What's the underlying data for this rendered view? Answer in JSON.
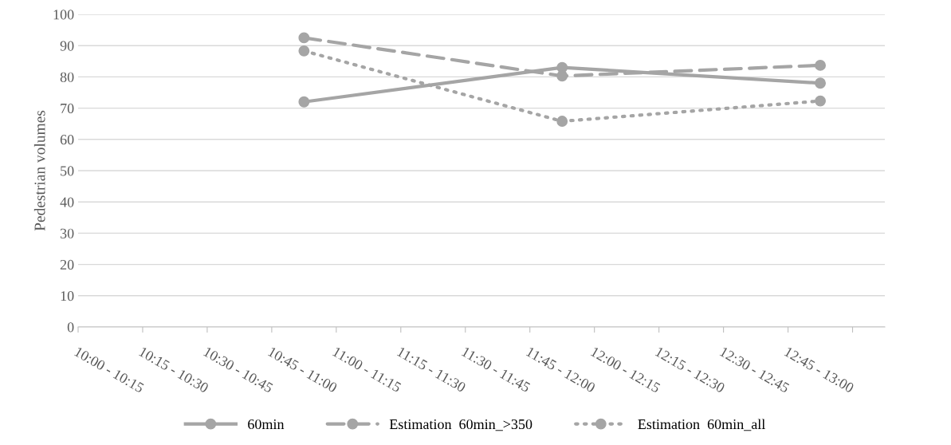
{
  "chart_data": {
    "type": "line",
    "ylabel": "Pedestrian volumes",
    "categories": [
      "10:00 - 10:15",
      "10:15 - 10:30",
      "10:30 - 10:45",
      "10:45 - 11:00",
      "11:00 - 11:15",
      "11:15 - 11:30",
      "11:30 - 11:45",
      "11:45 - 12:00",
      "12:00 - 12:15",
      "12:15 - 12:30",
      "12:30 - 12:45",
      "12:45 - 13:00"
    ],
    "series": [
      {
        "name": "60min",
        "color": "#a5a5a5",
        "line_style": "solid",
        "values": [
          null,
          null,
          null,
          72,
          null,
          null,
          null,
          83,
          null,
          null,
          null,
          78
        ]
      },
      {
        "name": "Estimation  60min_>350",
        "color": "#a5a5a5",
        "line_style": "dashed",
        "values": [
          null,
          null,
          null,
          92.5,
          null,
          null,
          null,
          80.3,
          null,
          null,
          null,
          83.7
        ]
      },
      {
        "name": "Estimation  60min_all",
        "color": "#a5a5a5",
        "line_style": "dotted",
        "values": [
          null,
          null,
          null,
          88.3,
          null,
          null,
          null,
          65.8,
          null,
          null,
          null,
          72.3
        ]
      }
    ],
    "marker": "circle",
    "ylim": [
      0,
      100
    ],
    "yticks": [
      0,
      10,
      20,
      30,
      40,
      50,
      60,
      70,
      80,
      90,
      100
    ],
    "grid": "y",
    "legend": "bottom"
  }
}
